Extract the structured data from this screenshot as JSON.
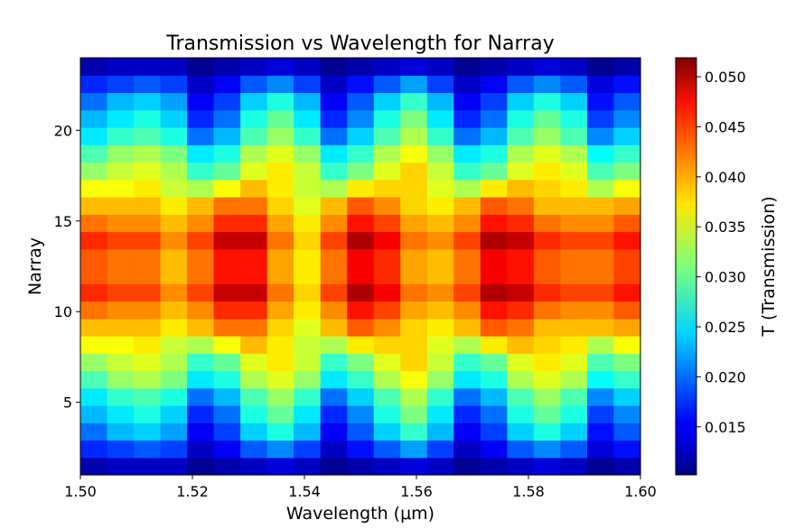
{
  "chart_data": {
    "type": "heatmap",
    "title": "Transmission vs Wavelength for Narray",
    "xlabel": "Wavelength (μm)",
    "ylabel": "Narray",
    "colorbar_label": "T (Transmission)",
    "colormap": "jet",
    "xlim": [
      1.5,
      1.6
    ],
    "ylim": [
      1,
      24
    ],
    "clim": [
      0.0102,
      0.0519
    ],
    "x_ticks": [
      "1.50",
      "1.52",
      "1.54",
      "1.56",
      "1.58",
      "1.60"
    ],
    "x_tick_values": [
      1.5,
      1.52,
      1.54,
      1.56,
      1.58,
      1.6
    ],
    "y_ticks": [
      "5",
      "10",
      "15",
      "20"
    ],
    "y_tick_values": [
      5,
      10,
      15,
      20
    ],
    "colorbar_ticks": [
      "0.015",
      "0.020",
      "0.025",
      "0.030",
      "0.035",
      "0.040",
      "0.045",
      "0.050"
    ],
    "colorbar_tick_values": [
      0.015,
      0.02,
      0.025,
      0.03,
      0.035,
      0.04,
      0.045,
      0.05
    ],
    "wavelengths": [
      1.5,
      1.505,
      1.51,
      1.515,
      1.52,
      1.525,
      1.53,
      1.535,
      1.54,
      1.545,
      1.55,
      1.555,
      1.56,
      1.565,
      1.57,
      1.575,
      1.58,
      1.585,
      1.59,
      1.595,
      1.6
    ],
    "narray": [
      1,
      2,
      3,
      4,
      5,
      6,
      7,
      8,
      9,
      10,
      11,
      12,
      13,
      14,
      15,
      16,
      17,
      18,
      19,
      20,
      21,
      22,
      23,
      24
    ],
    "values": [
      [
        0.012,
        0.013,
        0.013,
        0.013,
        0.011,
        0.012,
        0.013,
        0.014,
        0.013,
        0.011,
        0.012,
        0.013,
        0.014,
        0.013,
        0.011,
        0.012,
        0.013,
        0.014,
        0.013,
        0.011,
        0.012
      ],
      [
        0.017,
        0.018,
        0.019,
        0.018,
        0.013,
        0.015,
        0.019,
        0.021,
        0.018,
        0.013,
        0.016,
        0.019,
        0.022,
        0.018,
        0.013,
        0.015,
        0.019,
        0.021,
        0.019,
        0.014,
        0.016
      ],
      [
        0.02,
        0.023,
        0.024,
        0.022,
        0.015,
        0.018,
        0.024,
        0.027,
        0.023,
        0.015,
        0.019,
        0.024,
        0.028,
        0.023,
        0.015,
        0.018,
        0.024,
        0.027,
        0.024,
        0.016,
        0.019
      ],
      [
        0.023,
        0.025,
        0.027,
        0.024,
        0.017,
        0.02,
        0.027,
        0.03,
        0.025,
        0.017,
        0.021,
        0.027,
        0.031,
        0.025,
        0.017,
        0.02,
        0.027,
        0.03,
        0.027,
        0.018,
        0.021
      ],
      [
        0.025,
        0.028,
        0.029,
        0.027,
        0.02,
        0.023,
        0.029,
        0.032,
        0.028,
        0.02,
        0.024,
        0.029,
        0.033,
        0.028,
        0.02,
        0.023,
        0.029,
        0.032,
        0.029,
        0.021,
        0.024
      ],
      [
        0.029,
        0.032,
        0.033,
        0.031,
        0.025,
        0.027,
        0.033,
        0.035,
        0.032,
        0.025,
        0.028,
        0.033,
        0.036,
        0.032,
        0.025,
        0.027,
        0.033,
        0.035,
        0.033,
        0.026,
        0.028
      ],
      [
        0.032,
        0.034,
        0.035,
        0.033,
        0.028,
        0.03,
        0.035,
        0.037,
        0.034,
        0.028,
        0.031,
        0.035,
        0.038,
        0.034,
        0.028,
        0.03,
        0.035,
        0.037,
        0.035,
        0.029,
        0.031
      ],
      [
        0.036,
        0.036,
        0.037,
        0.034,
        0.033,
        0.036,
        0.039,
        0.037,
        0.034,
        0.033,
        0.037,
        0.038,
        0.038,
        0.035,
        0.033,
        0.037,
        0.039,
        0.038,
        0.037,
        0.033,
        0.036
      ],
      [
        0.039,
        0.039,
        0.039,
        0.037,
        0.039,
        0.042,
        0.042,
        0.038,
        0.035,
        0.039,
        0.043,
        0.041,
        0.038,
        0.037,
        0.039,
        0.043,
        0.042,
        0.039,
        0.039,
        0.039,
        0.04
      ],
      [
        0.042,
        0.041,
        0.041,
        0.039,
        0.041,
        0.045,
        0.045,
        0.04,
        0.037,
        0.041,
        0.046,
        0.044,
        0.04,
        0.039,
        0.041,
        0.046,
        0.045,
        0.042,
        0.041,
        0.041,
        0.043
      ],
      [
        0.045,
        0.044,
        0.044,
        0.041,
        0.044,
        0.049,
        0.049,
        0.042,
        0.038,
        0.044,
        0.05,
        0.047,
        0.042,
        0.041,
        0.044,
        0.05,
        0.049,
        0.045,
        0.044,
        0.044,
        0.046
      ],
      [
        0.043,
        0.042,
        0.042,
        0.039,
        0.042,
        0.046,
        0.046,
        0.04,
        0.037,
        0.042,
        0.047,
        0.045,
        0.04,
        0.039,
        0.042,
        0.047,
        0.046,
        0.043,
        0.042,
        0.042,
        0.044
      ],
      [
        0.043,
        0.042,
        0.042,
        0.039,
        0.042,
        0.046,
        0.046,
        0.04,
        0.037,
        0.042,
        0.047,
        0.045,
        0.04,
        0.039,
        0.042,
        0.047,
        0.046,
        0.043,
        0.042,
        0.042,
        0.044
      ],
      [
        0.045,
        0.044,
        0.044,
        0.041,
        0.044,
        0.049,
        0.049,
        0.042,
        0.038,
        0.044,
        0.05,
        0.047,
        0.042,
        0.041,
        0.044,
        0.05,
        0.049,
        0.045,
        0.044,
        0.044,
        0.046
      ],
      [
        0.042,
        0.041,
        0.041,
        0.039,
        0.041,
        0.045,
        0.045,
        0.04,
        0.037,
        0.041,
        0.046,
        0.044,
        0.04,
        0.039,
        0.041,
        0.046,
        0.045,
        0.042,
        0.041,
        0.041,
        0.043
      ],
      [
        0.039,
        0.039,
        0.039,
        0.037,
        0.039,
        0.042,
        0.042,
        0.038,
        0.035,
        0.039,
        0.043,
        0.041,
        0.038,
        0.037,
        0.039,
        0.043,
        0.042,
        0.039,
        0.039,
        0.039,
        0.04
      ],
      [
        0.036,
        0.036,
        0.037,
        0.034,
        0.033,
        0.036,
        0.039,
        0.037,
        0.034,
        0.033,
        0.037,
        0.038,
        0.038,
        0.035,
        0.033,
        0.037,
        0.039,
        0.038,
        0.037,
        0.033,
        0.036
      ],
      [
        0.032,
        0.034,
        0.035,
        0.033,
        0.028,
        0.03,
        0.035,
        0.037,
        0.034,
        0.028,
        0.031,
        0.035,
        0.038,
        0.034,
        0.028,
        0.03,
        0.035,
        0.037,
        0.035,
        0.029,
        0.031
      ],
      [
        0.029,
        0.032,
        0.033,
        0.031,
        0.025,
        0.027,
        0.033,
        0.035,
        0.032,
        0.025,
        0.028,
        0.033,
        0.036,
        0.032,
        0.025,
        0.027,
        0.033,
        0.035,
        0.033,
        0.026,
        0.028
      ],
      [
        0.025,
        0.028,
        0.029,
        0.027,
        0.02,
        0.023,
        0.029,
        0.032,
        0.028,
        0.02,
        0.024,
        0.029,
        0.033,
        0.028,
        0.02,
        0.023,
        0.029,
        0.032,
        0.029,
        0.021,
        0.024
      ],
      [
        0.023,
        0.025,
        0.027,
        0.024,
        0.017,
        0.02,
        0.027,
        0.03,
        0.025,
        0.017,
        0.021,
        0.027,
        0.031,
        0.025,
        0.017,
        0.02,
        0.027,
        0.03,
        0.027,
        0.018,
        0.021
      ],
      [
        0.02,
        0.023,
        0.024,
        0.022,
        0.015,
        0.018,
        0.024,
        0.027,
        0.023,
        0.015,
        0.019,
        0.024,
        0.028,
        0.023,
        0.015,
        0.018,
        0.024,
        0.027,
        0.024,
        0.016,
        0.019
      ],
      [
        0.017,
        0.018,
        0.019,
        0.018,
        0.013,
        0.015,
        0.019,
        0.021,
        0.018,
        0.013,
        0.016,
        0.019,
        0.022,
        0.018,
        0.013,
        0.015,
        0.019,
        0.021,
        0.019,
        0.014,
        0.016
      ],
      [
        0.012,
        0.013,
        0.013,
        0.013,
        0.011,
        0.012,
        0.013,
        0.014,
        0.013,
        0.011,
        0.012,
        0.013,
        0.014,
        0.013,
        0.011,
        0.012,
        0.013,
        0.014,
        0.013,
        0.011,
        0.012
      ]
    ]
  }
}
